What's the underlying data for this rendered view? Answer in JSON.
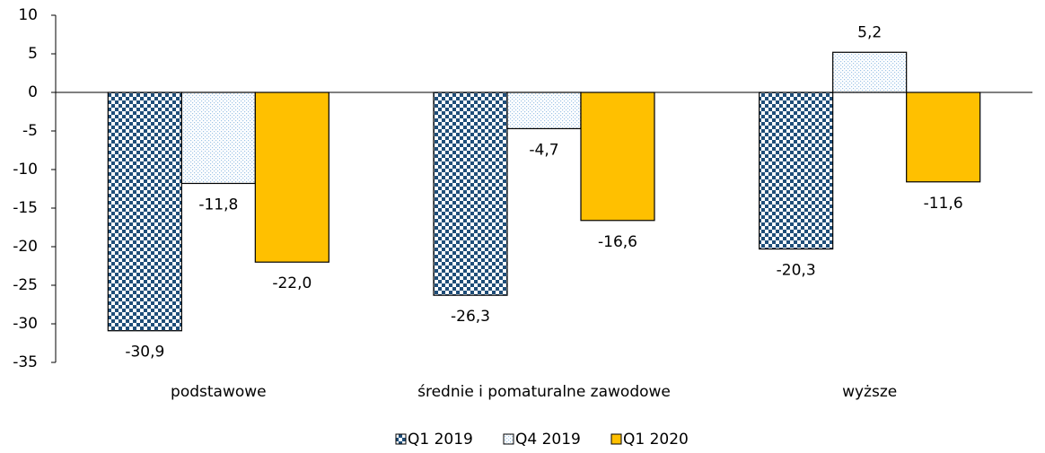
{
  "chart_data": {
    "type": "bar",
    "categories": [
      "podstawowe",
      "średnie i pomaturalne zawodowe",
      "wyższe"
    ],
    "series": [
      {
        "name": "Q1 2019",
        "color": "#1f4e79",
        "pattern": "checker",
        "values": [
          -30.9,
          -26.3,
          -20.3
        ],
        "value_labels": [
          "-30,9",
          "-26,3",
          "-20,3"
        ]
      },
      {
        "name": "Q4 2019",
        "color": "#9dc3e6",
        "pattern": "dots",
        "values": [
          -11.8,
          -4.7,
          5.2
        ],
        "value_labels": [
          "-11,8",
          "-4,7",
          "5,2"
        ]
      },
      {
        "name": "Q1 2020",
        "color": "#ffc000",
        "pattern": "solid",
        "values": [
          -22.0,
          -16.6,
          -11.6
        ],
        "value_labels": [
          "-22,0",
          "-16,6",
          "-11,6"
        ]
      }
    ],
    "ylim": [
      -35,
      10
    ],
    "yticks": [
      10,
      5,
      0,
      -5,
      -10,
      -15,
      -20,
      -25,
      -30,
      -35
    ],
    "legend": "bottom"
  }
}
